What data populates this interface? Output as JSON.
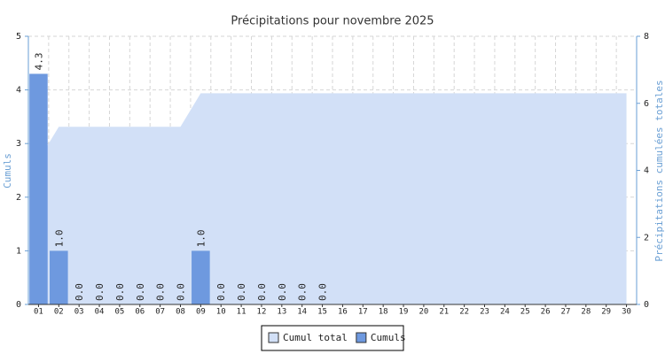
{
  "chart_data": {
    "type": "bar",
    "title": "Précipitations pour novembre 2025",
    "y_label": "Cumuls",
    "y2_label": "Précipitations cumulées totales",
    "categories": [
      "01",
      "02",
      "03",
      "04",
      "05",
      "06",
      "07",
      "08",
      "09",
      "10",
      "11",
      "12",
      "13",
      "14",
      "15",
      "16",
      "17",
      "18",
      "19",
      "20",
      "21",
      "22",
      "23",
      "24",
      "25",
      "26",
      "27",
      "28",
      "29",
      "30"
    ],
    "series": [
      {
        "name": "Cumul total",
        "type": "area",
        "axis": "y2",
        "color": "#d2e0f7",
        "values": [
          4.3,
          5.3,
          5.3,
          5.3,
          5.3,
          5.3,
          5.3,
          5.3,
          6.3,
          6.3,
          6.3,
          6.3,
          6.3,
          6.3,
          6.3,
          6.3,
          6.3,
          6.3,
          6.3,
          6.3,
          6.3,
          6.3,
          6.3,
          6.3,
          6.3,
          6.3,
          6.3,
          6.3,
          6.3,
          6.3
        ]
      },
      {
        "name": "Cumuls",
        "type": "bar",
        "color": "#6e99df",
        "values": [
          4.3,
          1,
          0,
          0,
          0,
          0,
          0,
          0,
          1,
          0,
          0,
          0,
          0,
          0,
          0,
          null,
          null,
          null,
          null,
          null,
          null,
          null,
          null,
          null,
          null,
          null,
          null,
          null,
          null,
          null
        ],
        "value_labels": [
          "4.3",
          "1.0",
          "0.0",
          "0.0",
          "0.0",
          "0.0",
          "0.0",
          "0.0",
          "1.0",
          "0.0",
          "0.0",
          "0.0",
          "0.0",
          "0.0",
          "0.0",
          null,
          null,
          null,
          null,
          null,
          null,
          null,
          null,
          null,
          null,
          null,
          null,
          null,
          null,
          null
        ]
      }
    ],
    "ylim": [
      0,
      5
    ],
    "yticks": [
      0,
      1,
      2,
      3,
      4,
      5
    ],
    "y2lim": [
      0,
      8
    ],
    "y2ticks": [
      0,
      2,
      4,
      6,
      8
    ],
    "grid": true
  }
}
